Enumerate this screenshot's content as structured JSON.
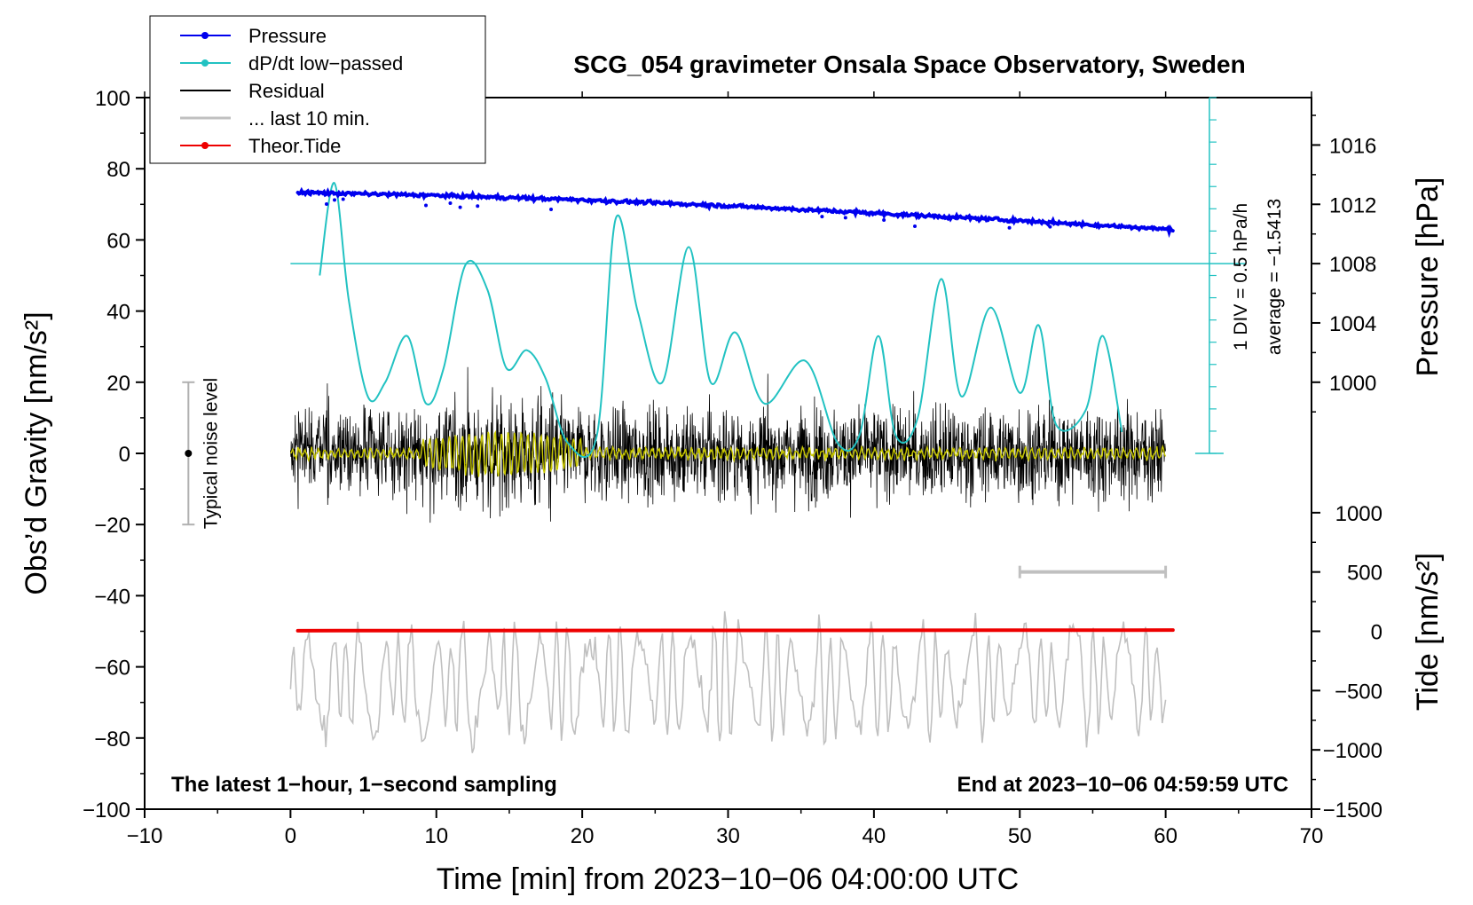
{
  "chart_data": {
    "type": "line",
    "title": "SCG_054 gravimeter Onsala Space Observatory, Sweden",
    "xlabel": "Time [min] from 2023−10−06 04:00:00 UTC",
    "ylabel_left": "Obs’d Gravity [nm/s²]",
    "ylabel_right_pressure": "Pressure [hPa]",
    "ylabel_right_tide": "Tide [nm/s²]",
    "xlim": [
      -10,
      70
    ],
    "ylim": [
      -100,
      100
    ],
    "x_ticks": [
      -10,
      0,
      10,
      20,
      30,
      40,
      50,
      60,
      70
    ],
    "x_tick_labels": [
      "−10",
      "0",
      "10",
      "20",
      "30",
      "40",
      "50",
      "60",
      "70"
    ],
    "y_ticks": [
      -100,
      -80,
      -60,
      -40,
      -20,
      0,
      20,
      40,
      60,
      80,
      100
    ],
    "y_tick_labels": [
      "−100",
      "−80",
      "−60",
      "−40",
      "−20",
      "0",
      "20",
      "40",
      "60",
      "80",
      "100"
    ],
    "pressure_axis": {
      "ticks": [
        1000,
        1004,
        1008,
        1012,
        1016
      ],
      "tick_labels": [
        "1000",
        "1004",
        "1008",
        "1012",
        "1016"
      ],
      "map": {
        "p0": 1000,
        "g0": 20,
        "g_per_hpa": 4.167
      }
    },
    "tide_axis": {
      "ticks": [
        1000,
        500,
        0,
        -500,
        -1000,
        -1500
      ],
      "tick_labels": [
        "1000",
        "500",
        "0",
        "−500",
        "−1000",
        "−1500"
      ],
      "map": {
        "t0": 0,
        "g0": -50,
        "g_per_unit": 0.03333
      }
    },
    "legend": {
      "position": "top-left",
      "entries": [
        {
          "label": "Pressure",
          "color": "#0000ee",
          "marker": true
        },
        {
          "label": "dP/dt low−passed",
          "color": "#22c2c2",
          "marker": true
        },
        {
          "label": "Residual",
          "color": "#000000",
          "marker": false
        },
        {
          "label": "... last 10 min.",
          "color": "#c0c0c0",
          "marker": false
        },
        {
          "label": "Theor.Tide",
          "color": "#ee0000",
          "marker": true
        }
      ]
    },
    "series": [
      {
        "name": "Pressure",
        "unit": "hPa",
        "color": "#0000ee",
        "x": [
          0.5,
          10,
          20,
          30,
          40,
          50,
          60.5
        ],
        "values": [
          1012.8,
          1012.6,
          1012.3,
          1011.9,
          1011.4,
          1010.9,
          1010.3
        ]
      },
      {
        "name": "dP/dt low−passed",
        "unit": "nm/s²",
        "color": "#22c2c2",
        "x": [
          2.0,
          3.0,
          4.0,
          5.3,
          6.5,
          8.0,
          9.3,
          10.5,
          12.0,
          13.5,
          14.8,
          16.2,
          17.5,
          19.0,
          21.0,
          22.3,
          23.8,
          25.5,
          27.3,
          28.8,
          30.5,
          32.5,
          35.3,
          37.5,
          39.0,
          40.3,
          41.5,
          43.0,
          44.6,
          46.0,
          48.0,
          50.0,
          51.3,
          52.5,
          54.5,
          55.7,
          57.0
        ],
        "values": [
          50,
          76,
          43,
          16,
          20,
          33,
          14,
          24,
          53,
          46,
          24,
          29,
          21,
          3,
          5,
          66,
          40,
          20,
          58,
          20,
          34,
          14,
          26,
          3,
          5,
          33,
          5,
          10,
          49,
          16,
          41,
          17,
          36,
          8,
          12,
          33,
          6
        ]
      },
      {
        "name": "Residual",
        "unit": "nm/s²",
        "color": "#000000",
        "envelope": [
          -34,
          35
        ]
      },
      {
        "name": "Residual low-pass",
        "unit": "nm/s²",
        "color": "#c8c800"
      },
      {
        "name": "... last 10 min.",
        "unit": "nm/s²",
        "color": "#c0c0c0",
        "center": -64,
        "amplitude": 16
      },
      {
        "name": "Theor.Tide",
        "unit": "nm/s²",
        "color": "#ee0000",
        "x": [
          0.5,
          60.5
        ],
        "values": [
          5,
          10
        ]
      }
    ],
    "annotations": {
      "pressure_rate_line": {
        "value": 1008,
        "label1": "1 DIV = 0.5 hPa/h",
        "label2": "average = −1.5413"
      },
      "noise_bar": {
        "label": "Typical noise level",
        "x": -7,
        "range": [
          -20,
          20
        ]
      },
      "window_bar": {
        "x": [
          50,
          60
        ]
      },
      "bottom_left": "The latest 1−hour, 1−second sampling",
      "bottom_right": "End at 2023−10−06 04:59:59 UTC"
    }
  }
}
